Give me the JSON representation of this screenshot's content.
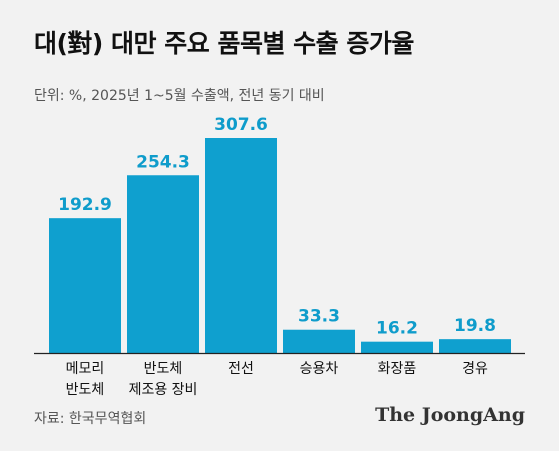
{
  "chart_data": {
    "type": "bar",
    "title": "대(對) 대만 주요 품목별 수출 증가율",
    "subtitle": "단위: %, 2025년 1~5월 수출액, 전년 동기 대비",
    "categories": [
      [
        "메모리",
        "반도체"
      ],
      [
        "반도체",
        "제조용 장비"
      ],
      [
        "전선"
      ],
      [
        "승용차"
      ],
      [
        "화장품"
      ],
      [
        "경유"
      ]
    ],
    "values": [
      192.9,
      254.3,
      307.6,
      33.3,
      16.2,
      19.8
    ],
    "value_labels": [
      "192.9",
      "254.3",
      "307.6",
      "33.3",
      "16.2",
      "19.8"
    ],
    "ylim": [
      0,
      307.6
    ],
    "grid": false,
    "colors": {
      "bar": "#0fa0cf",
      "label": "#0f9ccb",
      "axis": "#222222"
    }
  },
  "footer": {
    "source": "자료: 한국무역협회",
    "logo": "The JoongAng"
  }
}
